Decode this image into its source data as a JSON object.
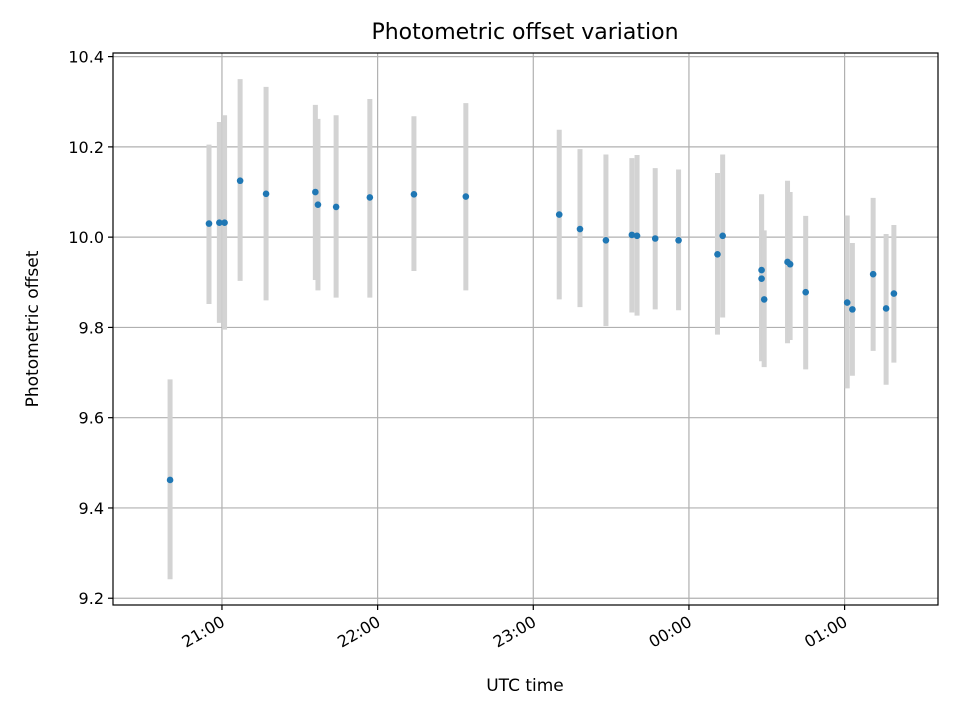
{
  "chart_data": {
    "type": "scatter",
    "title": "Photometric offset variation",
    "xlabel": "UTC time",
    "ylabel": "Photometric offset",
    "xlim": [
      "20:18",
      "01:36"
    ],
    "ylim": [
      9.185,
      10.408
    ],
    "xticks": [
      "21:00",
      "22:00",
      "23:00",
      "00:00",
      "01:00"
    ],
    "xtick_values": [
      "21:00",
      "22:00",
      "23:00",
      "00:00",
      "01:00"
    ],
    "yticks": [
      9.2,
      9.4,
      9.6,
      9.8,
      10.0,
      10.2,
      10.4
    ],
    "ytick_labels": [
      "9.2",
      "9.4",
      "9.6",
      "9.8",
      "10.0",
      "10.2",
      "10.4"
    ],
    "grid": true,
    "point_color": "#1f77b4",
    "errorbar_color": "#d3d3d3",
    "series": [
      {
        "points": [
          {
            "x": "20:40",
            "y": 9.462,
            "ylo": 9.242,
            "yhi": 9.685
          },
          {
            "x": "20:55",
            "y": 10.03,
            "ylo": 9.852,
            "yhi": 10.205
          },
          {
            "x": "20:59",
            "y": 10.032,
            "ylo": 9.81,
            "yhi": 10.255
          },
          {
            "x": "21:01",
            "y": 10.032,
            "ylo": 9.795,
            "yhi": 10.27
          },
          {
            "x": "21:07",
            "y": 10.125,
            "ylo": 9.903,
            "yhi": 10.35
          },
          {
            "x": "21:17",
            "y": 10.096,
            "ylo": 9.86,
            "yhi": 10.333
          },
          {
            "x": "21:36",
            "y": 10.1,
            "ylo": 9.905,
            "yhi": 10.293
          },
          {
            "x": "21:37",
            "y": 10.072,
            "ylo": 9.882,
            "yhi": 10.262
          },
          {
            "x": "21:44",
            "y": 10.067,
            "ylo": 9.866,
            "yhi": 10.27
          },
          {
            "x": "21:57",
            "y": 10.088,
            "ylo": 9.866,
            "yhi": 10.306
          },
          {
            "x": "22:14",
            "y": 10.095,
            "ylo": 9.925,
            "yhi": 10.268
          },
          {
            "x": "22:34",
            "y": 10.09,
            "ylo": 9.882,
            "yhi": 10.297
          },
          {
            "x": "23:10",
            "y": 10.05,
            "ylo": 9.862,
            "yhi": 10.238
          },
          {
            "x": "23:18",
            "y": 10.018,
            "ylo": 9.845,
            "yhi": 10.195
          },
          {
            "x": "23:28",
            "y": 9.993,
            "ylo": 9.803,
            "yhi": 10.183
          },
          {
            "x": "23:38",
            "y": 10.005,
            "ylo": 9.833,
            "yhi": 10.175
          },
          {
            "x": "23:40",
            "y": 10.003,
            "ylo": 9.826,
            "yhi": 10.182
          },
          {
            "x": "23:47",
            "y": 9.997,
            "ylo": 9.84,
            "yhi": 10.153
          },
          {
            "x": "23:56",
            "y": 9.993,
            "ylo": 9.838,
            "yhi": 10.15
          },
          {
            "x": "00:11",
            "y": 9.962,
            "ylo": 9.784,
            "yhi": 10.142
          },
          {
            "x": "00:13",
            "y": 10.003,
            "ylo": 9.822,
            "yhi": 10.183
          },
          {
            "x": "00:28",
            "y": 9.927,
            "ylo": 9.762,
            "yhi": 10.095
          },
          {
            "x": "00:28",
            "y": 9.908,
            "ylo": 9.725,
            "yhi": 10.093
          },
          {
            "x": "00:29",
            "y": 9.862,
            "ylo": 9.712,
            "yhi": 10.015
          },
          {
            "x": "00:38",
            "y": 9.945,
            "ylo": 9.765,
            "yhi": 10.125
          },
          {
            "x": "00:39",
            "y": 9.94,
            "ylo": 9.772,
            "yhi": 10.1
          },
          {
            "x": "00:45",
            "y": 9.878,
            "ylo": 9.707,
            "yhi": 10.047
          },
          {
            "x": "01:01",
            "y": 9.855,
            "ylo": 9.665,
            "yhi": 10.048
          },
          {
            "x": "01:03",
            "y": 9.84,
            "ylo": 9.693,
            "yhi": 9.987
          },
          {
            "x": "01:11",
            "y": 9.918,
            "ylo": 9.748,
            "yhi": 10.087
          },
          {
            "x": "01:16",
            "y": 9.842,
            "ylo": 9.673,
            "yhi": 10.007
          },
          {
            "x": "01:19",
            "y": 9.875,
            "ylo": 9.722,
            "yhi": 10.027
          }
        ]
      }
    ]
  }
}
